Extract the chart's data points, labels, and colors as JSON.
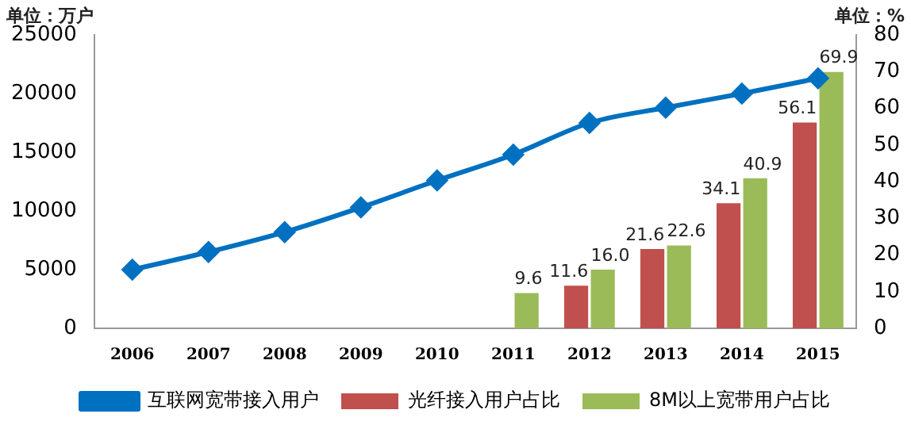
{
  "chart_data": {
    "type": "bar",
    "ylabel": "单位：万户",
    "y2label": "单位：%",
    "categories": [
      "2006",
      "2007",
      "2008",
      "2009",
      "2010",
      "2011",
      "2012",
      "2013",
      "2014",
      "2015"
    ],
    "series": [
      {
        "name": "光纤接入用户占比",
        "color": "#c0504d",
        "axis": "y2",
        "values": [
          null,
          null,
          null,
          null,
          null,
          null,
          11.6,
          21.6,
          34.1,
          56.1
        ],
        "value_labels": [
          null,
          null,
          null,
          null,
          null,
          null,
          "11.6",
          "21.6",
          "34.1",
          "56.1"
        ]
      },
      {
        "name": "8M以上宽带用户占比",
        "color": "#9bbb59",
        "axis": "y2",
        "values": [
          null,
          null,
          null,
          null,
          null,
          9.6,
          16.0,
          22.6,
          40.9,
          69.9
        ],
        "value_labels": [
          null,
          null,
          null,
          null,
          null,
          "9.6",
          "16.0",
          "22.6",
          "40.9",
          "69.9"
        ]
      },
      {
        "name": "互联网宽带接入用户",
        "type": "line",
        "color": "#0070c0",
        "axis": "y",
        "marker": "diamond",
        "values": [
          5000,
          6500,
          8200,
          10300,
          12600,
          14800,
          17500,
          18800,
          20000,
          21300
        ]
      }
    ],
    "ylim": [
      0,
      25000
    ],
    "yticks": [
      0,
      5000,
      10000,
      15000,
      20000,
      25000
    ],
    "y2lim": [
      0,
      80
    ],
    "y2ticks": [
      0,
      10,
      20,
      30,
      40,
      50,
      60,
      70,
      80
    ],
    "grid": false,
    "legend": "bottom"
  }
}
